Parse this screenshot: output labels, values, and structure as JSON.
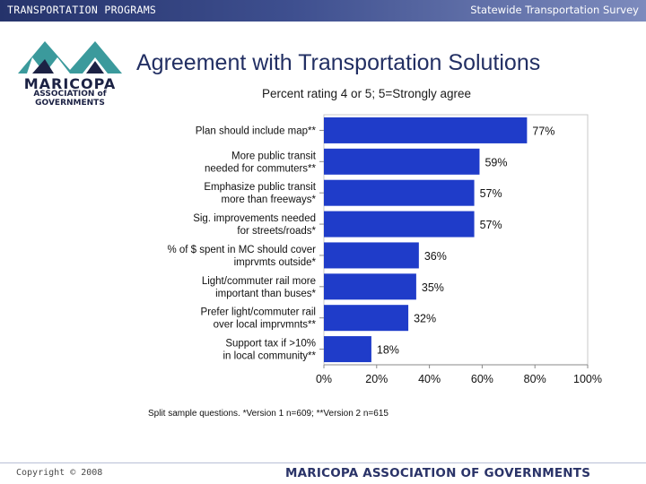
{
  "header": {
    "left": "TRANSPORTATION PROGRAMS",
    "right": "Statewide Transportation Survey"
  },
  "logo": {
    "line1": "MARICOPA",
    "line2": "ASSOCIATION of",
    "line3": "GOVERNMENTS"
  },
  "footnote": "Split sample questions. *Version 1 n=609; **Version 2 n=615",
  "footer": {
    "left": "Copyright © 2008",
    "right": "MARICOPA ASSOCIATION OF GOVERNMENTS"
  },
  "colors": {
    "bar": "#1f3cc9",
    "title": "#222f63",
    "header": "#25336b"
  },
  "chart_data": {
    "type": "bar",
    "orientation": "horizontal",
    "title": "Agreement with Transportation Solutions",
    "subtitle": "Percent rating 4 or 5; 5=Strongly agree",
    "categories": [
      [
        "Plan should include map**"
      ],
      [
        "More public transit",
        "needed for commuters**"
      ],
      [
        "Emphasize public transit",
        "more than freeways*"
      ],
      [
        "Sig. improvements needed",
        "for streets/roads*"
      ],
      [
        "% of $ spent in MC should cover",
        "imprvmts outside*"
      ],
      [
        "Light/commuter rail more",
        "important than buses*"
      ],
      [
        "Prefer light/commuter rail",
        "over local imprvmnts**"
      ],
      [
        "Support tax if >10%",
        "in local community**"
      ]
    ],
    "values": [
      77,
      59,
      57,
      57,
      36,
      35,
      32,
      18
    ],
    "value_labels": [
      "77%",
      "59%",
      "57%",
      "57%",
      "36%",
      "35%",
      "32%",
      "18%"
    ],
    "xlim": [
      0,
      100
    ],
    "xticks": [
      "0%",
      "20%",
      "40%",
      "60%",
      "80%",
      "100%"
    ],
    "grid": false
  }
}
